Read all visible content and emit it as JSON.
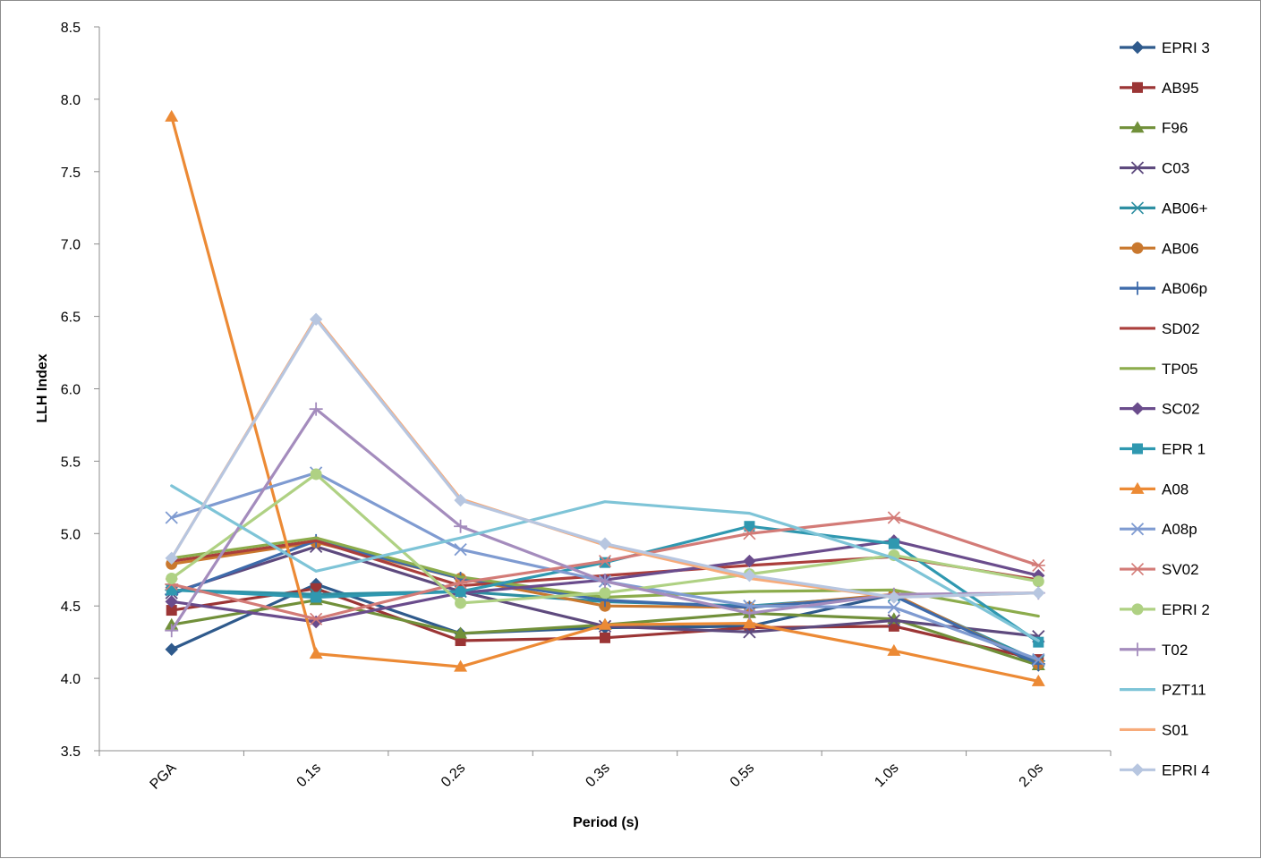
{
  "chart_data": {
    "type": "line",
    "title": "",
    "xlabel": "Period (s)",
    "ylabel": "LLH Index",
    "categories": [
      "PGA",
      "0.1s",
      "0.2s",
      "0.3s",
      "0.5s",
      "1.0s",
      "2.0s"
    ],
    "ylim": [
      3.5,
      8.5
    ],
    "yticks": [
      "3.5",
      "4.0",
      "4.5",
      "5.0",
      "5.5",
      "6.0",
      "6.5",
      "7.0",
      "7.5",
      "8.0",
      "8.5"
    ],
    "grid": false,
    "legend_position": "right",
    "series": [
      {
        "name": "EPRI 3",
        "color": "#2f5a8c",
        "marker": "diamond",
        "values": [
          4.2,
          4.65,
          4.31,
          4.35,
          4.36,
          4.58,
          4.09
        ]
      },
      {
        "name": "AB95",
        "color": "#9b3535",
        "marker": "square",
        "values": [
          4.47,
          4.62,
          4.26,
          4.28,
          4.35,
          4.36,
          4.13
        ]
      },
      {
        "name": "F96",
        "color": "#71903a",
        "marker": "triangle",
        "values": [
          4.37,
          4.54,
          4.31,
          4.37,
          4.45,
          4.41,
          4.09
        ]
      },
      {
        "name": "C03",
        "color": "#5e4a7e",
        "marker": "x",
        "values": [
          4.59,
          4.91,
          4.6,
          4.36,
          4.32,
          4.4,
          4.29
        ]
      },
      {
        "name": "AB06+",
        "color": "#2e8fa2",
        "marker": "asterisk",
        "values": [
          4.61,
          4.58,
          4.6,
          4.53,
          4.5,
          4.57,
          4.12
        ]
      },
      {
        "name": "AB06",
        "color": "#c9782e",
        "marker": "circle",
        "values": [
          4.79,
          4.94,
          4.69,
          4.5,
          4.49,
          4.58,
          4.1
        ]
      },
      {
        "name": "AB06p",
        "color": "#3e6bab",
        "marker": "plus",
        "values": [
          4.58,
          4.95,
          4.69,
          4.54,
          4.49,
          4.57,
          4.1
        ]
      },
      {
        "name": "SD02",
        "color": "#ab3f3c",
        "marker": "none",
        "values": [
          4.81,
          4.95,
          4.64,
          4.71,
          4.78,
          4.84,
          4.68
        ]
      },
      {
        "name": "TP05",
        "color": "#8cac4c",
        "marker": "none",
        "values": [
          4.83,
          4.97,
          4.7,
          4.56,
          4.6,
          4.61,
          4.43
        ]
      },
      {
        "name": "SC02",
        "color": "#6a4c8c",
        "marker": "diamond",
        "values": [
          4.53,
          4.39,
          4.59,
          4.68,
          4.81,
          4.95,
          4.71
        ]
      },
      {
        "name": "EPR 1",
        "color": "#2f98b0",
        "marker": "square",
        "values": [
          4.61,
          4.56,
          4.6,
          4.8,
          5.05,
          4.93,
          4.25
        ]
      },
      {
        "name": "A08",
        "color": "#ec8a35",
        "marker": "triangle",
        "values": [
          7.88,
          4.17,
          4.08,
          4.37,
          4.38,
          4.19,
          3.98
        ]
      },
      {
        "name": "A08p",
        "color": "#7f9bd1",
        "marker": "x",
        "values": [
          5.11,
          5.42,
          4.89,
          4.67,
          4.5,
          4.49,
          4.13
        ]
      },
      {
        "name": "SV02",
        "color": "#d37b77",
        "marker": "asterisk",
        "values": [
          4.65,
          4.41,
          4.66,
          4.81,
          5.0,
          5.11,
          4.78
        ]
      },
      {
        "name": "EPRI 2",
        "color": "#afd183",
        "marker": "circle",
        "values": [
          4.69,
          5.41,
          4.52,
          4.59,
          4.72,
          4.85,
          4.67
        ]
      },
      {
        "name": "T02",
        "color": "#a48cbd",
        "marker": "plus",
        "values": [
          4.33,
          5.86,
          5.05,
          4.67,
          4.45,
          4.58,
          4.59
        ]
      },
      {
        "name": "PZT11",
        "color": "#7ec4d7",
        "marker": "none",
        "values": [
          5.33,
          4.74,
          4.97,
          5.22,
          5.14,
          4.83,
          4.26
        ]
      },
      {
        "name": "S01",
        "color": "#f7ab7a",
        "marker": "none",
        "values": [
          4.83,
          6.49,
          5.24,
          4.92,
          4.69,
          4.56,
          4.59
        ]
      },
      {
        "name": "EPRI 4",
        "color": "#b7c6e0",
        "marker": "diamond",
        "values": [
          4.83,
          6.48,
          5.23,
          4.93,
          4.71,
          4.56,
          4.59
        ]
      }
    ]
  }
}
